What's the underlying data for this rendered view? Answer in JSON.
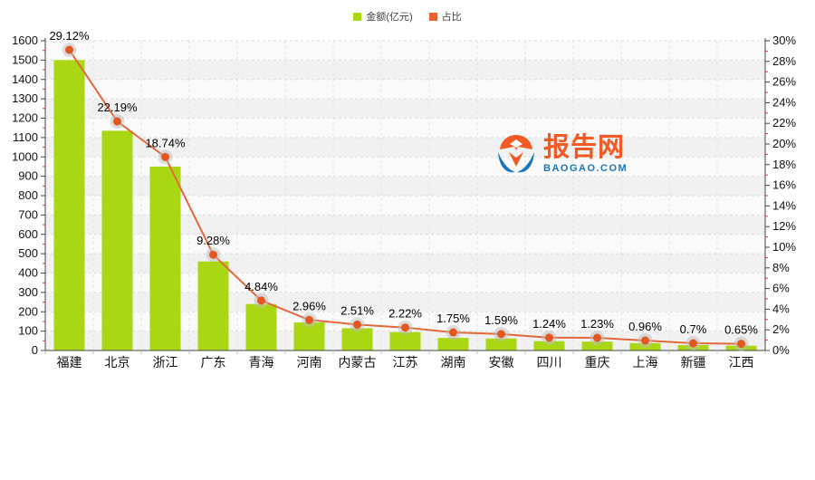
{
  "legend": {
    "items": [
      {
        "label": "金额(亿元)",
        "color": "#a9d714"
      },
      {
        "label": "占比",
        "color": "#e8622d"
      }
    ]
  },
  "watermark": {
    "title": "报告网",
    "subtitle": "BAOGAO.COM",
    "title_color": "#f15a24",
    "subtitle_color": "#1b75bb"
  },
  "chart_data": {
    "type": "bar",
    "subtype": "bar-line combo, dual y-axis",
    "categories": [
      "福建",
      "北京",
      "浙江",
      "广东",
      "青海",
      "河南",
      "内蒙古",
      "江苏",
      "湖南",
      "安徽",
      "四川",
      "重庆",
      "上海",
      "新疆",
      "江西"
    ],
    "series": [
      {
        "name": "金额(亿元)",
        "type": "bar",
        "axis": "left",
        "color": "#a9d714",
        "values": [
          1500,
          1135,
          950,
          460,
          240,
          145,
          115,
          95,
          65,
          62,
          48,
          46,
          38,
          28,
          25
        ],
        "values_note": "bar heights estimated from gridlines; not labeled on chart"
      },
      {
        "name": "占比",
        "type": "line",
        "axis": "right",
        "color": "#e2683c",
        "point_color": "#e25820",
        "values": [
          29.12,
          22.19,
          18.74,
          9.28,
          4.84,
          2.96,
          2.51,
          2.22,
          1.75,
          1.59,
          1.24,
          1.23,
          0.96,
          0.7,
          0.65
        ],
        "point_labels": [
          "29.12%",
          "22.19%",
          "18.74%",
          "9.28%",
          "4.84%",
          "2.96%",
          "2.51%",
          "2.22%",
          "1.75%",
          "1.59%",
          "1.24%",
          "1.23%",
          "0.96%",
          "0.7%",
          "0.65%"
        ]
      }
    ],
    "left_axis": {
      "min": 0,
      "max": 1600,
      "step": 100,
      "tick_labels": [
        "0",
        "100",
        "200",
        "300",
        "400",
        "500",
        "600",
        "700",
        "800",
        "900",
        "1000",
        "1100",
        "1200",
        "1300",
        "1400",
        "1500",
        "1600"
      ]
    },
    "right_axis": {
      "min": 0,
      "max": 30,
      "step": 2,
      "unit": "%",
      "tick_labels": [
        "0%",
        "2%",
        "4%",
        "6%",
        "8%",
        "10%",
        "12%",
        "14%",
        "16%",
        "18%",
        "20%",
        "22%",
        "24%",
        "26%",
        "28%",
        "30%"
      ]
    },
    "grid": true,
    "legend_position": "top-center",
    "title": ""
  }
}
